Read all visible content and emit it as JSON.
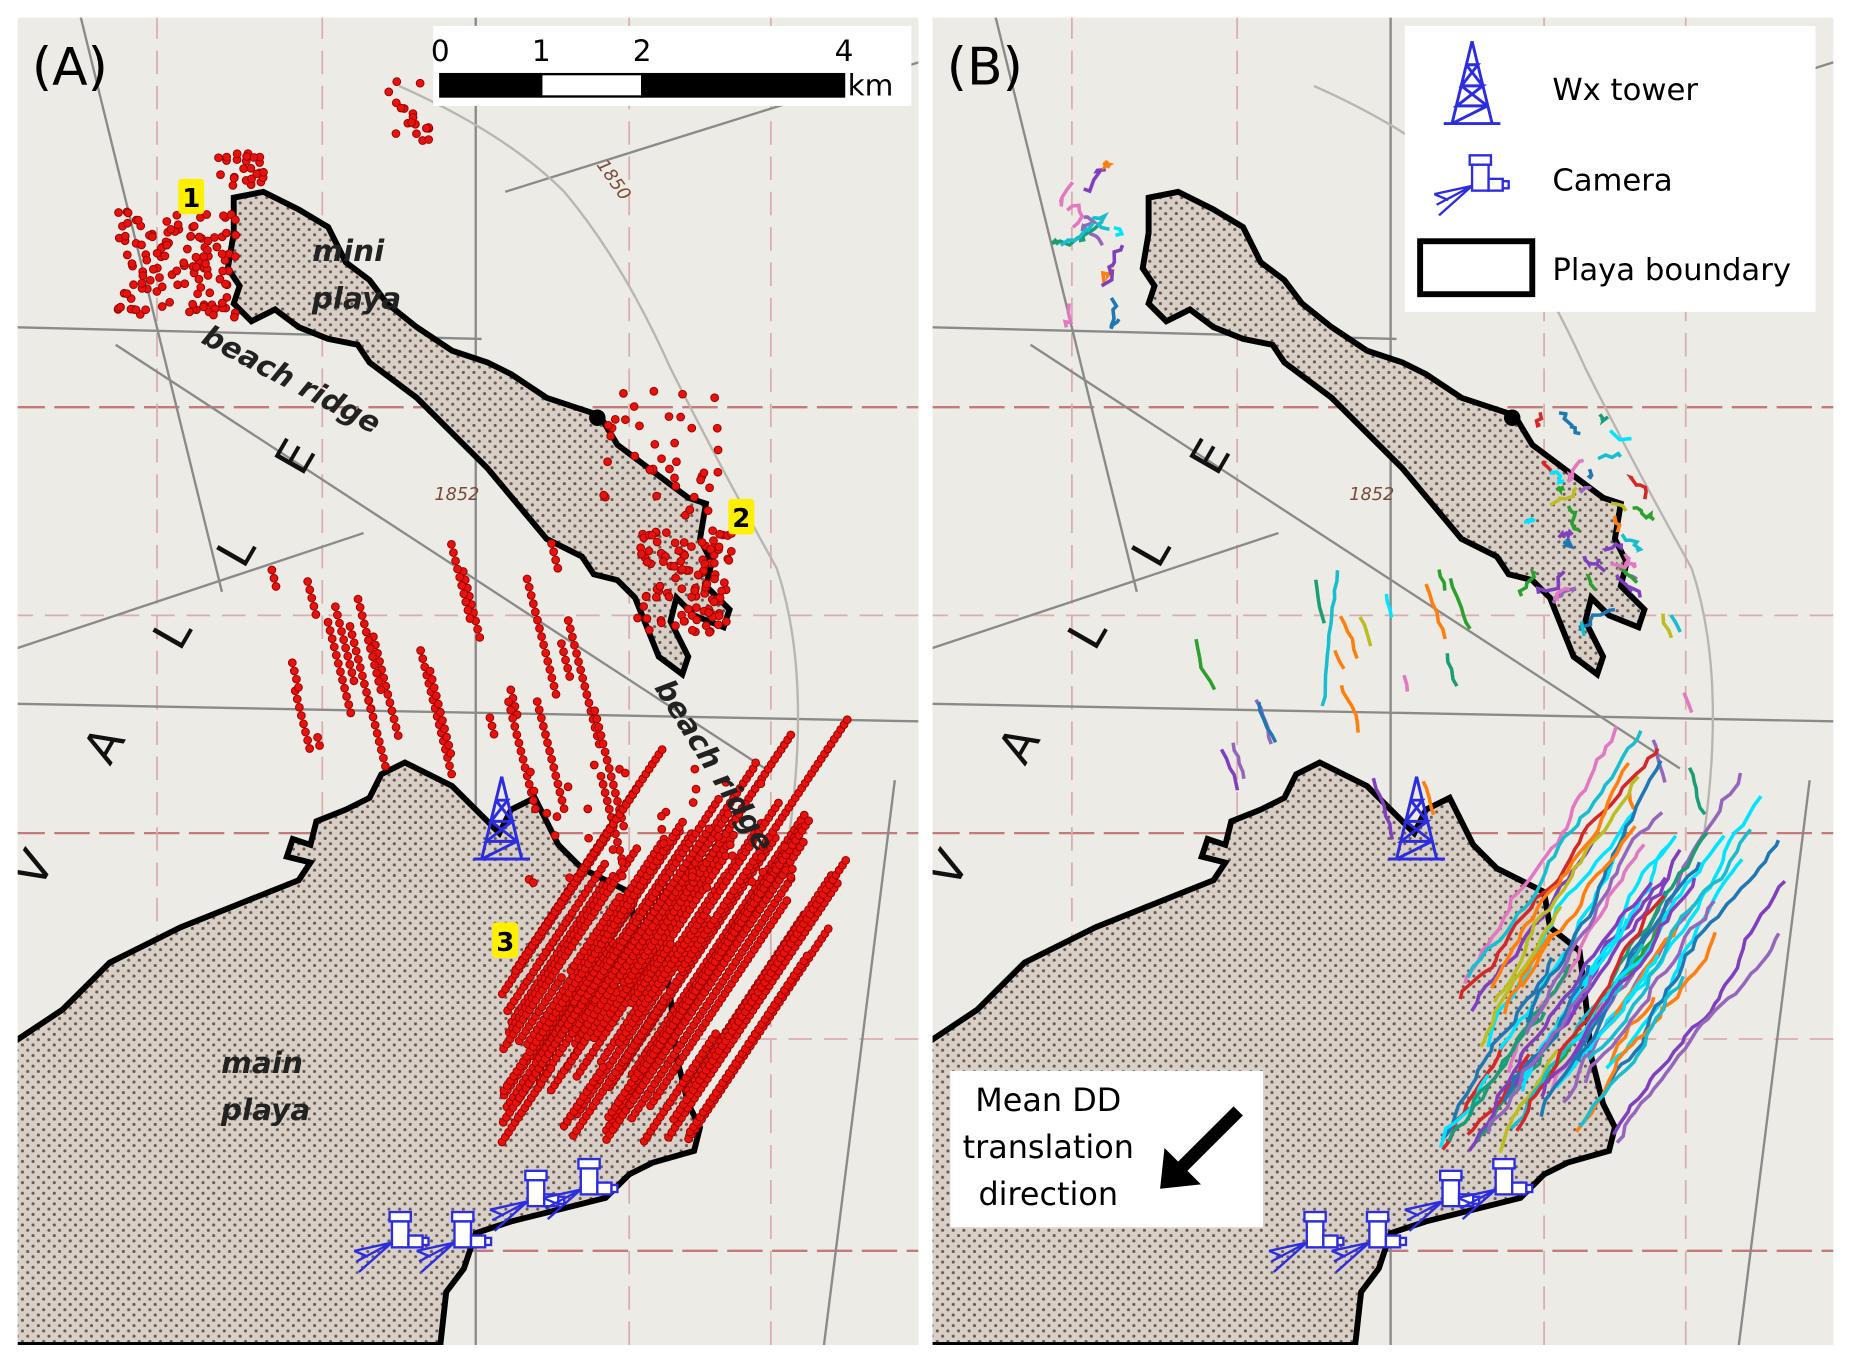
{
  "panel_a": {
    "label": "(A)",
    "scale_bar": {
      "ticks": [
        0,
        1,
        2,
        4
      ],
      "unit": "km"
    },
    "map_labels": {
      "mini_playa": [
        "mini",
        "playa"
      ],
      "main_playa": [
        "main",
        "playa"
      ],
      "beach_ridge": [
        "beach ridge",
        "beach ridge"
      ],
      "valley": [
        "V",
        "A",
        "L",
        "L",
        "E"
      ],
      "contours": [
        "1850",
        "1852"
      ]
    },
    "sites": [
      "1",
      "2",
      "3"
    ]
  },
  "panel_b": {
    "label": "(B)",
    "map_labels": {
      "valley": [
        "V",
        "A",
        "L",
        "L",
        "E"
      ],
      "contours": [
        "1852"
      ]
    },
    "legend": [
      "Wx tower",
      "Camera",
      "Playa boundary"
    ],
    "note": [
      "Mean DD",
      "translation",
      "direction"
    ]
  }
}
